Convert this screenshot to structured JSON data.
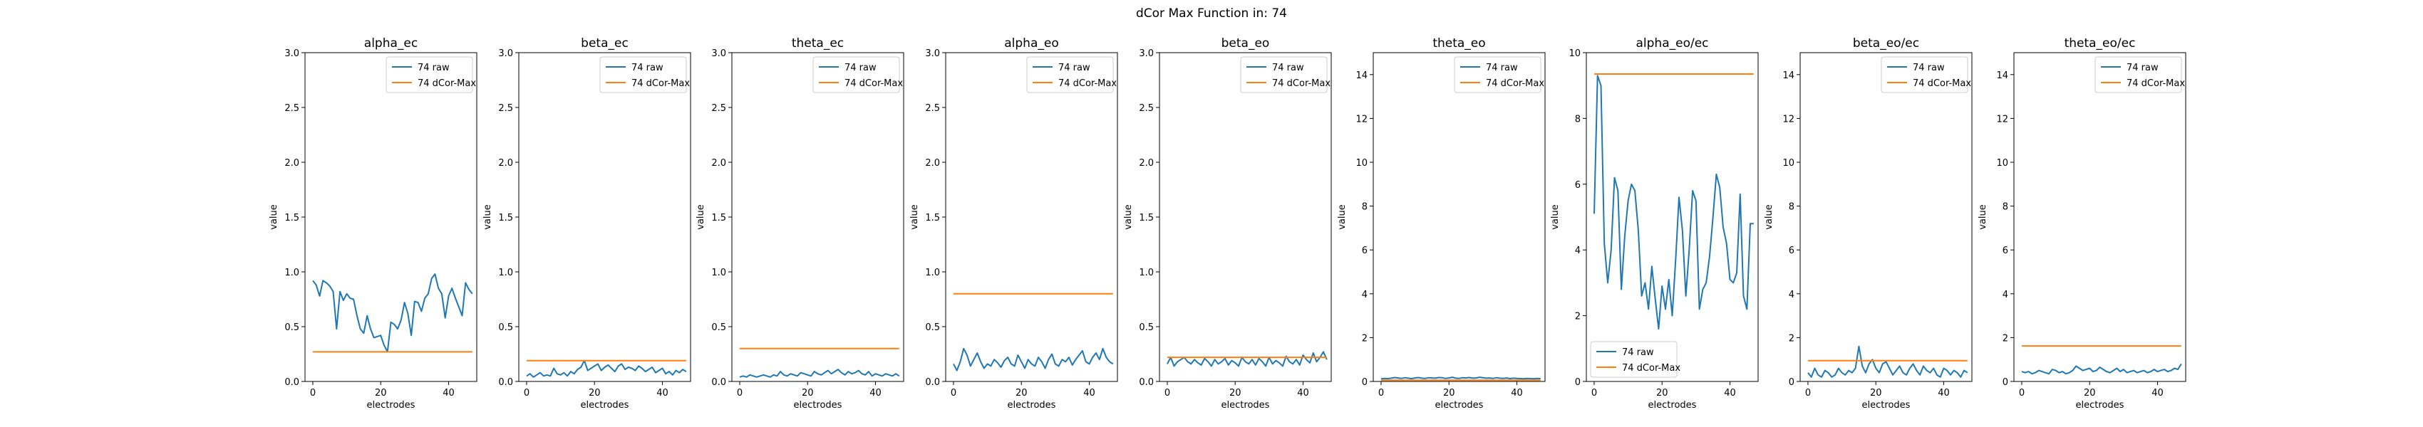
{
  "figure": {
    "suptitle": "dCor Max Function in: 74",
    "colors": {
      "raw": "#1f77b4",
      "dcor": "#ff7f0e"
    }
  },
  "chart_data": [
    {
      "type": "line",
      "title": "alpha_ec",
      "xlabel": "electrodes",
      "ylabel": "value",
      "xlim": [
        -2.3,
        48.3
      ],
      "ylim": [
        0,
        3
      ],
      "xticks": [
        0,
        20,
        40
      ],
      "yticks": [
        0.0,
        0.5,
        1.0,
        1.5,
        2.0,
        2.5,
        3.0
      ],
      "ytick_labels": [
        "0.0",
        "0.5",
        "1.0",
        "1.5",
        "2.0",
        "2.5",
        "3.0"
      ],
      "legend": {
        "location": "upper right"
      },
      "series": [
        {
          "name": "74 raw",
          "color": "#1f77b4",
          "values": [
            0.92,
            0.88,
            0.78,
            0.92,
            0.9,
            0.87,
            0.82,
            0.48,
            0.82,
            0.74,
            0.8,
            0.76,
            0.75,
            0.6,
            0.48,
            0.44,
            0.6,
            0.48,
            0.4,
            0.41,
            0.42,
            0.33,
            0.27,
            0.54,
            0.52,
            0.48,
            0.56,
            0.72,
            0.62,
            0.42,
            0.73,
            0.72,
            0.64,
            0.76,
            0.8,
            0.94,
            0.98,
            0.85,
            0.8,
            0.58,
            0.78,
            0.85,
            0.76,
            0.68,
            0.6,
            0.9,
            0.84,
            0.8
          ]
        },
        {
          "name": "74 dCor-Max",
          "color": "#ff7f0e",
          "values": [
            0.27,
            0.27
          ],
          "x": [
            0,
            47
          ]
        }
      ]
    },
    {
      "type": "line",
      "title": "beta_ec",
      "xlabel": "electrodes",
      "ylabel": "value",
      "xlim": [
        -2.3,
        48.3
      ],
      "ylim": [
        0,
        3
      ],
      "xticks": [
        0,
        20,
        40
      ],
      "yticks": [
        0.0,
        0.5,
        1.0,
        1.5,
        2.0,
        2.5,
        3.0
      ],
      "ytick_labels": [
        "0.0",
        "0.5",
        "1.0",
        "1.5",
        "2.0",
        "2.5",
        "3.0"
      ],
      "legend": {
        "location": "upper right"
      },
      "series": [
        {
          "name": "74 raw",
          "color": "#1f77b4",
          "values": [
            0.05,
            0.07,
            0.04,
            0.06,
            0.08,
            0.05,
            0.06,
            0.05,
            0.12,
            0.07,
            0.06,
            0.08,
            0.05,
            0.09,
            0.07,
            0.11,
            0.13,
            0.19,
            0.1,
            0.12,
            0.14,
            0.16,
            0.1,
            0.13,
            0.15,
            0.12,
            0.09,
            0.14,
            0.16,
            0.11,
            0.13,
            0.12,
            0.1,
            0.14,
            0.12,
            0.09,
            0.11,
            0.13,
            0.08,
            0.1,
            0.12,
            0.07,
            0.09,
            0.06,
            0.1,
            0.08,
            0.11,
            0.09
          ]
        },
        {
          "name": "74 dCor-Max",
          "color": "#ff7f0e",
          "values": [
            0.19,
            0.19
          ],
          "x": [
            0,
            47
          ]
        }
      ]
    },
    {
      "type": "line",
      "title": "theta_ec",
      "xlabel": "electrodes",
      "ylabel": "value",
      "xlim": [
        -2.3,
        48.3
      ],
      "ylim": [
        0,
        3
      ],
      "xticks": [
        0,
        20,
        40
      ],
      "yticks": [
        0.0,
        0.5,
        1.0,
        1.5,
        2.0,
        2.5,
        3.0
      ],
      "ytick_labels": [
        "0.0",
        "0.5",
        "1.0",
        "1.5",
        "2.0",
        "2.5",
        "3.0"
      ],
      "legend": {
        "location": "upper right"
      },
      "series": [
        {
          "name": "74 raw",
          "color": "#1f77b4",
          "values": [
            0.04,
            0.05,
            0.04,
            0.06,
            0.05,
            0.04,
            0.05,
            0.06,
            0.05,
            0.04,
            0.06,
            0.05,
            0.09,
            0.06,
            0.05,
            0.07,
            0.06,
            0.05,
            0.08,
            0.07,
            0.06,
            0.05,
            0.09,
            0.07,
            0.06,
            0.08,
            0.1,
            0.07,
            0.09,
            0.11,
            0.08,
            0.06,
            0.09,
            0.07,
            0.08,
            0.1,
            0.07,
            0.06,
            0.09,
            0.05,
            0.07,
            0.06,
            0.05,
            0.07,
            0.06,
            0.05,
            0.07,
            0.05
          ]
        },
        {
          "name": "74 dCor-Max",
          "color": "#ff7f0e",
          "values": [
            0.3,
            0.3
          ],
          "x": [
            0,
            47
          ]
        }
      ]
    },
    {
      "type": "line",
      "title": "alpha_eo",
      "xlabel": "electrodes",
      "ylabel": "value",
      "xlim": [
        -2.3,
        48.3
      ],
      "ylim": [
        0,
        3
      ],
      "xticks": [
        0,
        20,
        40
      ],
      "yticks": [
        0.0,
        0.5,
        1.0,
        1.5,
        2.0,
        2.5,
        3.0
      ],
      "ytick_labels": [
        "0.0",
        "0.5",
        "1.0",
        "1.5",
        "2.0",
        "2.5",
        "3.0"
      ],
      "legend": {
        "location": "upper right"
      },
      "series": [
        {
          "name": "74 raw",
          "color": "#1f77b4",
          "values": [
            0.16,
            0.1,
            0.18,
            0.3,
            0.24,
            0.14,
            0.2,
            0.26,
            0.18,
            0.12,
            0.16,
            0.14,
            0.2,
            0.17,
            0.13,
            0.19,
            0.22,
            0.16,
            0.14,
            0.24,
            0.18,
            0.12,
            0.2,
            0.16,
            0.14,
            0.22,
            0.18,
            0.12,
            0.2,
            0.25,
            0.16,
            0.14,
            0.2,
            0.18,
            0.22,
            0.15,
            0.2,
            0.24,
            0.28,
            0.18,
            0.16,
            0.22,
            0.26,
            0.2,
            0.3,
            0.22,
            0.18,
            0.16
          ]
        },
        {
          "name": "74 dCor-Max",
          "color": "#ff7f0e",
          "values": [
            0.8,
            0.8
          ],
          "x": [
            0,
            47
          ]
        }
      ]
    },
    {
      "type": "line",
      "title": "beta_eo",
      "xlabel": "electrodes",
      "ylabel": "value",
      "xlim": [
        -2.3,
        48.3
      ],
      "ylim": [
        0,
        3
      ],
      "xticks": [
        0,
        20,
        40
      ],
      "yticks": [
        0.0,
        0.5,
        1.0,
        1.5,
        2.0,
        2.5,
        3.0
      ],
      "ytick_labels": [
        "0.0",
        "0.5",
        "1.0",
        "1.5",
        "2.0",
        "2.5",
        "3.0"
      ],
      "legend": {
        "location": "upper right"
      },
      "series": [
        {
          "name": "74 raw",
          "color": "#1f77b4",
          "values": [
            0.16,
            0.22,
            0.14,
            0.18,
            0.2,
            0.22,
            0.18,
            0.16,
            0.2,
            0.17,
            0.15,
            0.21,
            0.18,
            0.14,
            0.2,
            0.16,
            0.18,
            0.21,
            0.15,
            0.19,
            0.17,
            0.14,
            0.22,
            0.18,
            0.16,
            0.2,
            0.15,
            0.21,
            0.18,
            0.14,
            0.22,
            0.16,
            0.19,
            0.17,
            0.14,
            0.23,
            0.18,
            0.16,
            0.2,
            0.15,
            0.24,
            0.2,
            0.17,
            0.26,
            0.18,
            0.22,
            0.27,
            0.2
          ]
        },
        {
          "name": "74 dCor-Max",
          "color": "#ff7f0e",
          "values": [
            0.22,
            0.22
          ],
          "x": [
            0,
            47
          ]
        }
      ]
    },
    {
      "type": "line",
      "title": "theta_eo",
      "xlabel": "electrodes",
      "ylabel": "value",
      "xlim": [
        -2.3,
        48.3
      ],
      "ylim": [
        0,
        15
      ],
      "xticks": [
        0,
        20,
        40
      ],
      "yticks": [
        0,
        2,
        4,
        6,
        8,
        10,
        12,
        14
      ],
      "ytick_labels": [
        "0",
        "2",
        "4",
        "6",
        "8",
        "10",
        "12",
        "14"
      ],
      "legend": {
        "location": "upper right"
      },
      "series": [
        {
          "name": "74 raw",
          "color": "#1f77b4",
          "values": [
            0.12,
            0.14,
            0.13,
            0.15,
            0.18,
            0.16,
            0.14,
            0.17,
            0.15,
            0.13,
            0.16,
            0.18,
            0.15,
            0.14,
            0.17,
            0.16,
            0.15,
            0.18,
            0.17,
            0.14,
            0.16,
            0.19,
            0.15,
            0.14,
            0.17,
            0.16,
            0.18,
            0.15,
            0.16,
            0.19,
            0.17,
            0.15,
            0.16,
            0.14,
            0.17,
            0.15,
            0.14,
            0.16,
            0.13,
            0.15,
            0.14,
            0.13,
            0.12,
            0.14,
            0.13,
            0.12,
            0.14,
            0.13
          ]
        },
        {
          "name": "74 dCor-Max",
          "color": "#ff7f0e",
          "values": [
            0.06,
            0.06
          ],
          "x": [
            0,
            47
          ]
        }
      ]
    },
    {
      "type": "line",
      "title": "alpha_eo/ec",
      "xlabel": "electrodes",
      "ylabel": "value",
      "xlim": [
        -2.3,
        48.3
      ],
      "ylim": [
        0,
        10
      ],
      "xticks": [
        0,
        20,
        40
      ],
      "yticks": [
        0,
        2,
        4,
        6,
        8,
        10
      ],
      "ytick_labels": [
        "0",
        "2",
        "4",
        "6",
        "8",
        "10"
      ],
      "legend": {
        "location": "lower left"
      },
      "series": [
        {
          "name": "74 raw",
          "color": "#1f77b4",
          "values": [
            5.1,
            9.3,
            9.0,
            4.2,
            3.0,
            4.0,
            6.2,
            5.8,
            2.8,
            4.4,
            5.5,
            6.0,
            5.8,
            4.6,
            2.6,
            3.0,
            2.2,
            3.5,
            2.5,
            1.6,
            2.9,
            2.2,
            3.1,
            2.0,
            3.7,
            5.6,
            4.6,
            2.6,
            4.0,
            5.8,
            5.5,
            2.2,
            2.8,
            3.0,
            3.8,
            5.0,
            6.3,
            5.9,
            4.7,
            4.2,
            3.1,
            3.0,
            3.3,
            5.7,
            2.6,
            2.2,
            4.8,
            4.8
          ]
        },
        {
          "name": "74 dCor-Max",
          "color": "#ff7f0e",
          "values": [
            9.35,
            9.35
          ],
          "x": [
            0,
            47
          ]
        }
      ]
    },
    {
      "type": "line",
      "title": "beta_eo/ec",
      "xlabel": "electrodes",
      "ylabel": "value",
      "xlim": [
        -2.3,
        48.3
      ],
      "ylim": [
        0,
        15
      ],
      "xticks": [
        0,
        20,
        40
      ],
      "yticks": [
        0,
        2,
        4,
        6,
        8,
        10,
        12,
        14
      ],
      "ytick_labels": [
        "0",
        "2",
        "4",
        "6",
        "8",
        "10",
        "12",
        "14"
      ],
      "legend": {
        "location": "upper right"
      },
      "series": [
        {
          "name": "74 raw",
          "color": "#1f77b4",
          "values": [
            0.4,
            0.2,
            0.6,
            0.3,
            0.2,
            0.5,
            0.4,
            0.2,
            0.3,
            0.6,
            0.4,
            0.3,
            0.5,
            0.4,
            0.6,
            1.6,
            0.7,
            0.4,
            0.8,
            1.0,
            0.6,
            0.4,
            0.8,
            0.9,
            0.6,
            0.3,
            0.5,
            0.7,
            0.4,
            0.3,
            0.6,
            0.8,
            0.5,
            0.3,
            0.7,
            0.5,
            0.4,
            0.6,
            0.3,
            0.2,
            0.6,
            0.5,
            0.3,
            0.5,
            0.4,
            0.2,
            0.5,
            0.4
          ]
        },
        {
          "name": "74 dCor-Max",
          "color": "#ff7f0e",
          "values": [
            0.95,
            0.95
          ],
          "x": [
            0,
            47
          ]
        }
      ]
    },
    {
      "type": "line",
      "title": "theta_eo/ec",
      "xlabel": "electrodes",
      "ylabel": "value",
      "xlim": [
        -2.3,
        48.3
      ],
      "ylim": [
        0,
        15
      ],
      "xticks": [
        0,
        20,
        40
      ],
      "yticks": [
        0,
        2,
        4,
        6,
        8,
        10,
        12,
        14
      ],
      "ytick_labels": [
        "0",
        "2",
        "4",
        "6",
        "8",
        "10",
        "12",
        "14"
      ],
      "legend": {
        "location": "upper right"
      },
      "series": [
        {
          "name": "74 raw",
          "color": "#1f77b4",
          "values": [
            0.45,
            0.4,
            0.45,
            0.35,
            0.4,
            0.5,
            0.45,
            0.4,
            0.35,
            0.55,
            0.5,
            0.4,
            0.45,
            0.35,
            0.4,
            0.5,
            0.7,
            0.6,
            0.5,
            0.55,
            0.6,
            0.45,
            0.5,
            0.65,
            0.55,
            0.45,
            0.4,
            0.5,
            0.6,
            0.45,
            0.55,
            0.4,
            0.45,
            0.5,
            0.4,
            0.45,
            0.5,
            0.4,
            0.45,
            0.55,
            0.45,
            0.5,
            0.55,
            0.45,
            0.5,
            0.6,
            0.55,
            0.8
          ]
        },
        {
          "name": "74 dCor-Max",
          "color": "#ff7f0e",
          "values": [
            1.62,
            1.62
          ],
          "x": [
            0,
            47
          ]
        }
      ]
    }
  ]
}
